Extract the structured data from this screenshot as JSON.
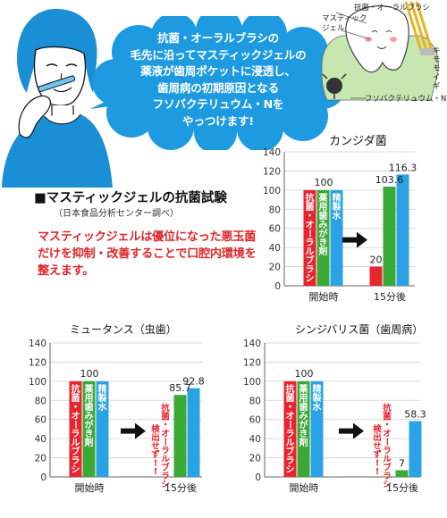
{
  "speech": {
    "lines": [
      "抗菌・オーラルブラシの",
      "毛先に沿ってマスティックジェルの",
      "薬液が歯周ポケットに浸透し、",
      "歯周病の初期原因となる",
      "フソバクテリュウム・Nを",
      "やっつけます!"
    ]
  },
  "tooth_diagram": {
    "labels": {
      "brush": "抗菌・オーラルブラシ",
      "gel_line1": "マスティック",
      "gel_line2": "ジェル",
      "gum": "キモモ\nイギ",
      "bacteria": "フソバクテリュウム・N"
    }
  },
  "test": {
    "heading": "■マスティックジェルの抗菌試験",
    "source": "（日本食品分析センター調べ）",
    "description": "マスティックジェルは優位になった悪玉菌だけを抑制・改善することで口腔内環境を整えます。"
  },
  "colors": {
    "red": "#e8242e",
    "green": "#3aa935",
    "blue": "#29a3e4",
    "cloud": "#1e9be0",
    "hair": "#1a8fd6"
  },
  "bar_labels": {
    "red": "抗菌・オーラルブラシ",
    "green": "薬用歯みがき剤",
    "blue": "精製水",
    "not_detected": "抗菌・オーラルブラシ\n検出せず!!"
  },
  "chart_data": [
    {
      "type": "bar",
      "title": "カンジダ菌",
      "categories": [
        "開始時",
        "15分後"
      ],
      "ylim": [
        0,
        140
      ],
      "yticks": [
        0,
        20,
        40,
        60,
        80,
        100,
        120,
        140
      ],
      "series": [
        {
          "name": "抗菌・オーラルブラシ",
          "values": [
            100,
            20
          ]
        },
        {
          "name": "薬用歯みがき剤",
          "values": [
            100,
            103.6
          ]
        },
        {
          "name": "精製水",
          "values": [
            100,
            116.3
          ]
        }
      ],
      "start_label": "100",
      "after_labels": [
        "20",
        "103.6",
        "116.3"
      ],
      "red_not_detected": false
    },
    {
      "type": "bar",
      "title": "ミュータンス（虫歯）",
      "categories": [
        "開始時",
        "15分後"
      ],
      "ylim": [
        0,
        140
      ],
      "yticks": [
        0,
        20,
        40,
        60,
        80,
        100,
        120,
        140
      ],
      "series": [
        {
          "name": "抗菌・オーラルブラシ",
          "values": [
            100,
            0
          ]
        },
        {
          "name": "薬用歯みがき剤",
          "values": [
            100,
            85.7
          ]
        },
        {
          "name": "精製水",
          "values": [
            100,
            92.8
          ]
        }
      ],
      "start_label": "100",
      "after_labels": [
        "",
        "85.7",
        "92.8"
      ],
      "red_not_detected": true
    },
    {
      "type": "bar",
      "title": "シンジバリス菌（歯周病）",
      "categories": [
        "開始時",
        "15分後"
      ],
      "ylim": [
        0,
        140
      ],
      "yticks": [
        0,
        20,
        40,
        60,
        80,
        100,
        120,
        140
      ],
      "series": [
        {
          "name": "抗菌・オーラルブラシ",
          "values": [
            100,
            0
          ]
        },
        {
          "name": "薬用歯みがき剤",
          "values": [
            100,
            7
          ]
        },
        {
          "name": "精製水",
          "values": [
            100,
            58.3
          ]
        }
      ],
      "start_label": "100",
      "after_labels": [
        "",
        "7",
        "58.3"
      ],
      "red_not_detected": true
    }
  ]
}
